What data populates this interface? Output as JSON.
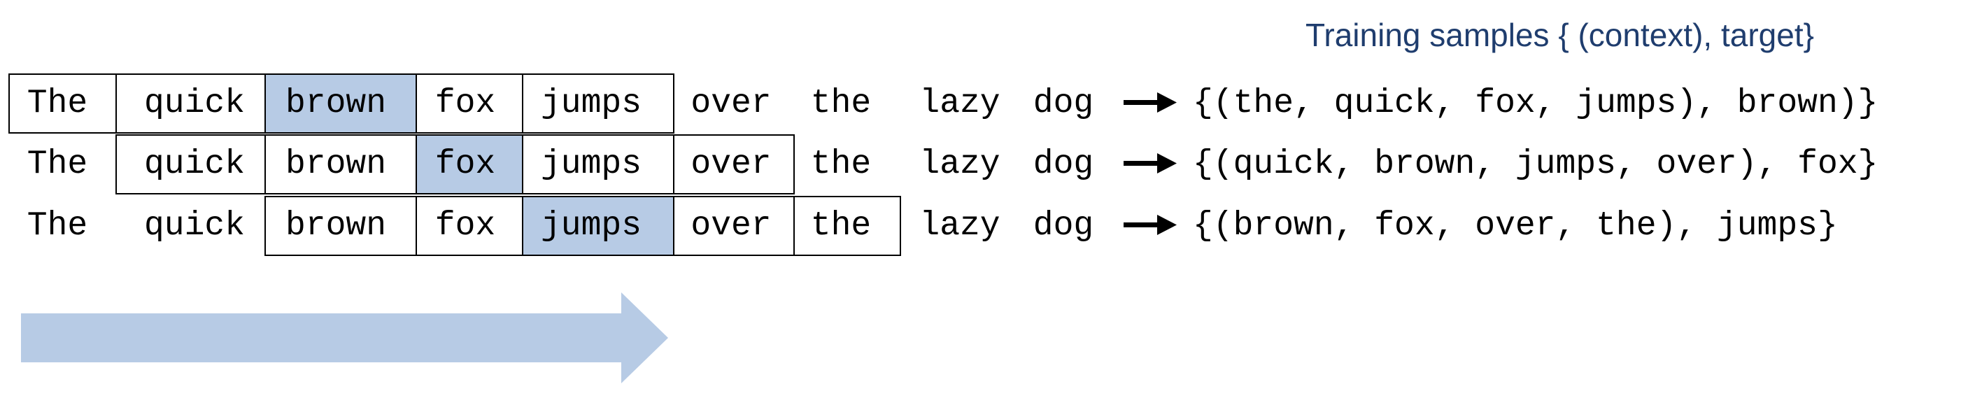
{
  "heading": "Training samples { (context), target}",
  "words": [
    "The",
    "quick",
    "brown",
    "fox",
    "jumps",
    "over",
    "the",
    "lazy",
    "dog"
  ],
  "rows": [
    {
      "window_start": 0,
      "window_end": 4,
      "target_index": 2,
      "sample": "{(the, quick, fox, jumps), brown)}"
    },
    {
      "window_start": 1,
      "window_end": 5,
      "target_index": 3,
      "sample": "{(quick, brown, jumps, over), fox}"
    },
    {
      "window_start": 2,
      "window_end": 6,
      "target_index": 4,
      "sample": "{(brown, fox, over, the), jumps}"
    }
  ],
  "colors": {
    "heading": "#1f3d6e",
    "target_fill": "#b7cbe5",
    "direction_arrow": "#b7cbe5",
    "border": "#000000"
  },
  "icons": {
    "row_arrow": "right-arrow-icon",
    "direction_arrow": "slide-direction-arrow-icon"
  }
}
